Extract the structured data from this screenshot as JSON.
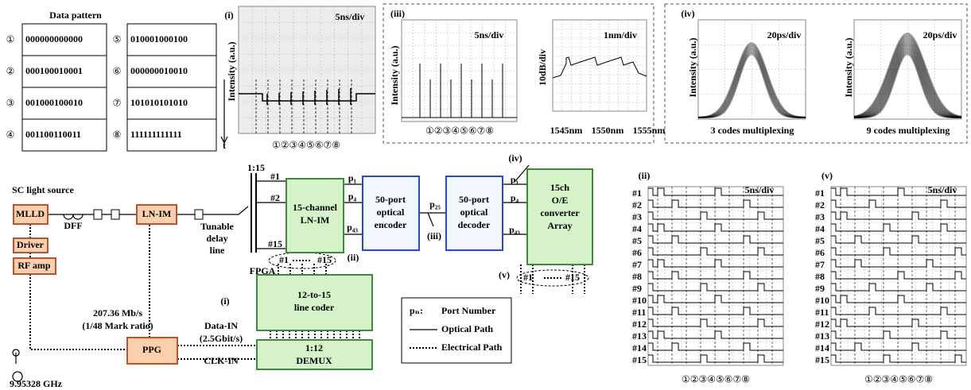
{
  "data_pattern": {
    "title": "Data pattern",
    "rows": [
      [
        "①",
        "000000000000"
      ],
      [
        "②",
        "000100010001"
      ],
      [
        "③",
        "001000100010"
      ],
      [
        "④",
        "001100110011"
      ],
      [
        "⑤",
        "010001000100"
      ],
      [
        "⑥",
        "000000010010"
      ],
      [
        "⑦",
        "101010101010"
      ],
      [
        "⑧",
        "111111111111"
      ]
    ]
  },
  "panel_i": {
    "label": "(i)",
    "scale": "5ns/div",
    "y_label": "Intensity (a.u.)",
    "time_axis": "t",
    "markers": "①②③④⑤⑥⑦⑧"
  },
  "panel_iii": {
    "label": "(iii)",
    "waveform": {
      "scale": "5ns/div",
      "y_label": "Intensity (a.u.)",
      "markers": "①②③④⑤⑥⑦⑧"
    },
    "spectrum": {
      "scale": "1nm/div",
      "y_label": "10dB/div",
      "x_labels": [
        "1545nm",
        "1550nm",
        "1555nm"
      ]
    }
  },
  "panel_iv": {
    "label": "(iv)",
    "eyes": [
      {
        "scale": "20ps/div",
        "y_label": "Intensity (a.u.)",
        "caption": "3 codes multiplexing"
      },
      {
        "scale": "20ps/div",
        "y_label": "Intensity (a.u.)",
        "caption": "9 codes multiplexing"
      }
    ]
  },
  "panel_ii": {
    "label": "(ii)",
    "scale": "5ns/div",
    "channels": [
      "#1",
      "#2",
      "#3",
      "#4",
      "#5",
      "#6",
      "#7",
      "#8",
      "#9",
      "#10",
      "#11",
      "#12",
      "#13",
      "#14",
      "#15"
    ],
    "markers": "①②③④⑤⑥⑦⑧"
  },
  "panel_v": {
    "label": "(v)",
    "scale": "5ns/div",
    "channels": [
      "#1",
      "#2",
      "#3",
      "#4",
      "#5",
      "#6",
      "#7",
      "#8",
      "#9",
      "#10",
      "#11",
      "#12",
      "#13",
      "#14",
      "#15"
    ],
    "markers": "①②③④⑤⑥⑦⑧"
  },
  "diagram": {
    "sc_source": "SC light source",
    "mlld": "MLLD",
    "dff": "DFF",
    "ln_im": "LN-IM",
    "driver": "Driver",
    "rf_amp": "RF amp",
    "delay_line": [
      "Tunable",
      "delay",
      "line"
    ],
    "splitter": "1:15",
    "splitter_ports": [
      "#1",
      "#2",
      "#15"
    ],
    "modulator": [
      "15-channel",
      "LN-IM"
    ],
    "encoder_ports": [
      "p₁",
      "p₄",
      "p₄₃"
    ],
    "encoder": [
      "50-port",
      "optical",
      "encoder"
    ],
    "link_port": "p₂₅",
    "monitor_iii": "(iii)",
    "decoder": [
      "50-port",
      "optical",
      "decoder"
    ],
    "decoder_ports": [
      "p₁",
      "p₄",
      "p₄₃"
    ],
    "monitor_iv": "(iv)",
    "converter": [
      "15ch",
      "O/E",
      "converter",
      "Array"
    ],
    "monitor_v": "(v)",
    "outputs": [
      "#1",
      "#15"
    ],
    "monitor_ii": "(ii)",
    "fpga_outputs": [
      "#1",
      "#15"
    ],
    "fpga": "FPGA",
    "line_coder": [
      "12-to-15",
      "line coder"
    ],
    "demux": [
      "1:12",
      "DEMUX"
    ],
    "monitor_i": "(i)",
    "data_in": [
      "Data-IN",
      "(2.5Gbit/s)"
    ],
    "clk_in": "CLK-IN",
    "ppg_rate": [
      "207.36 Mb/s",
      "(1/48 Mark ratio)"
    ],
    "ppg": "PPG",
    "clock": "9.95328 GHz"
  },
  "legend": {
    "symbol": "pₙ:",
    "port": "Port Number",
    "optical": "Optical Path",
    "electrical": "Electrical Path"
  }
}
